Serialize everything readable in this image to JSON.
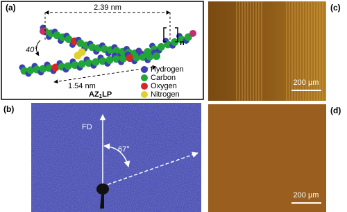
{
  "panel_a": {
    "label": "(a)",
    "length_top": "2.39 nm",
    "angle": "40°",
    "repeat": "n",
    "length_bottom": "1.54 nm",
    "name": {
      "main": "AZ",
      "sub": "1",
      "tail": "LP"
    },
    "legend": [
      "Hydrogen",
      "Carbon",
      "Oxygen",
      "Nitrogen"
    ]
  },
  "panel_b": {
    "label": "(b)",
    "direction": "FD",
    "angle": "67°"
  },
  "panel_c": {
    "label": "(c)",
    "scale_bar": "200 µm"
  },
  "panel_d": {
    "label": "(d)",
    "scale_bar": "200 µm"
  }
}
